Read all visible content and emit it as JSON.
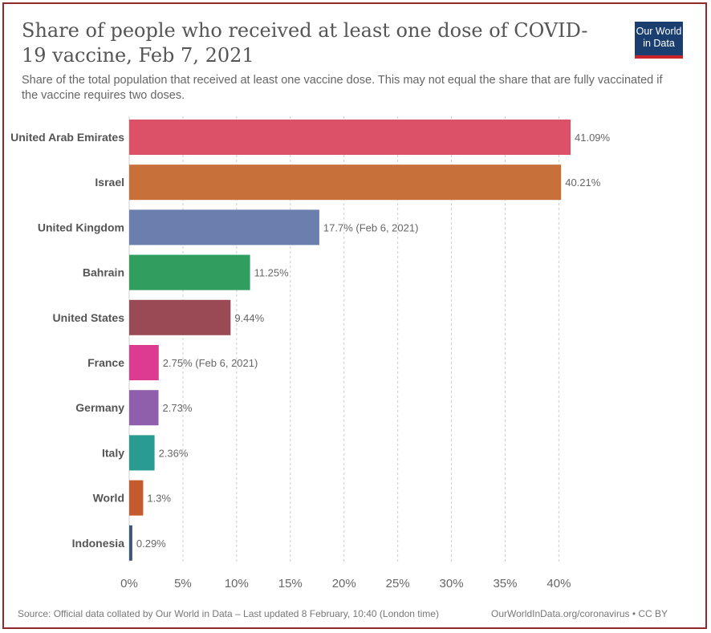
{
  "header": {
    "title": "Share of people who received at least one dose of COVID-19 vaccine, Feb 7, 2021",
    "subtitle": "Share of the total population that received at least one vaccine dose. This may not equal the share that are fully vaccinated if the vaccine requires two doses.",
    "logo_line1": "Our World",
    "logo_line2": "in Data"
  },
  "footer": {
    "source": "Source: Official data collated by Our World in Data – Last updated 8 February, 10:40 (London time)",
    "credit": "OurWorldInData.org/coronavirus • CC BY"
  },
  "colors": {
    "frame": "#8e2a2a",
    "logo_bg": "#1a3e6f",
    "logo_accent": "#c8242c"
  },
  "chart_data": {
    "type": "bar",
    "orientation": "horizontal",
    "title": "Share of people who received at least one dose of COVID-19 vaccine, Feb 7, 2021",
    "xlim": [
      0,
      41.09
    ],
    "x_ticks": [
      0,
      5,
      10,
      15,
      20,
      25,
      30,
      35,
      40
    ],
    "x_tick_labels": [
      "0%",
      "5%",
      "10%",
      "15%",
      "20%",
      "25%",
      "30%",
      "35%",
      "40%"
    ],
    "grid": "vertical dashed",
    "categories": [
      "United Arab Emirates",
      "Israel",
      "United Kingdom",
      "Bahrain",
      "United States",
      "France",
      "Germany",
      "Italy",
      "World",
      "Indonesia"
    ],
    "values": [
      41.09,
      40.21,
      17.7,
      11.25,
      9.44,
      2.75,
      2.73,
      2.36,
      1.3,
      0.29
    ],
    "value_labels": [
      "41.09%",
      "40.21%",
      "17.7% (Feb 6, 2021)",
      "11.25%",
      "9.44%",
      "2.75% (Feb 6, 2021)",
      "2.73%",
      "2.36%",
      "1.3%",
      "0.29%"
    ],
    "bar_colors": [
      "#dc5068",
      "#c8703a",
      "#6a7fae",
      "#2f9e5e",
      "#9a4a55",
      "#dc3b91",
      "#8f5fae",
      "#2a9b90",
      "#c45a2e",
      "#3d5577"
    ]
  }
}
